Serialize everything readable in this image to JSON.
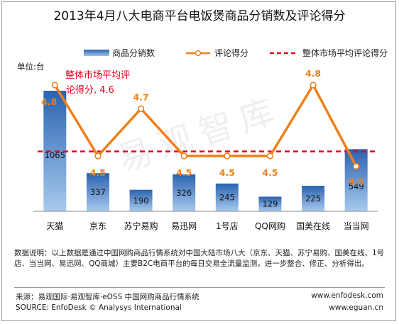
{
  "title": "2013年4月八大电商平台电饭煲商品分销数及评论得分",
  "unit_label": "单位:台",
  "legend": {
    "bars": "商品分销数",
    "line": "评论得分",
    "average": "整体市场平均评论得分"
  },
  "average_annotation_line1": "整体市场平均评",
  "average_annotation_line2": "论得分, 4.6",
  "watermark": "易观智库",
  "colors": {
    "bar_top": "#2a63b0",
    "bar_bottom": "#9fc3ea",
    "line": "#f07f1a",
    "average": "#e4001b",
    "score_label": "#ef7d17"
  },
  "chart_data": {
    "type": "bar",
    "categories": [
      "天猫",
      "京东",
      "苏宁易购",
      "易迅网",
      "1号店",
      "QQ网购",
      "国美在线",
      "当当网"
    ],
    "series": [
      {
        "name": "商品分销数",
        "type": "bar",
        "values": [
          1065,
          337,
          190,
          326,
          245,
          129,
          225,
          549
        ]
      },
      {
        "name": "评论得分",
        "type": "line",
        "values": [
          4.8,
          4.5,
          4.7,
          4.5,
          4.5,
          4.5,
          4.8,
          4.6
        ]
      },
      {
        "name": "整体市场平均评论得分",
        "type": "line",
        "values": [
          4.6,
          4.6,
          4.6,
          4.6,
          4.6,
          4.6,
          4.6,
          4.6
        ]
      }
    ],
    "bar_value_labels": [
      "1065",
      "337",
      "190",
      "326",
      "245",
      "129",
      "225",
      "549"
    ],
    "score_labels": [
      "4.8",
      "4.5",
      "4.7",
      "4.5",
      "4.5",
      "4.5",
      "4.8",
      "4.6"
    ],
    "ylabel": "单位:台",
    "bar_ylim": [
      0,
      1300
    ],
    "score_ylim": [
      4.0,
      5.0
    ],
    "legend_position": "top"
  },
  "note": "数据说明：以上数据是通过中国网购商品行情系统对中国大陆市场八大（京东、天猫、苏宁易购、国美在线、1号店、当当网、易迅网、QQ商城）主要B2C电商平台的每日交易全流量监测，进一步整合、修正、分析得出。",
  "footer": {
    "source_cn": "来源：易观国际·易观智库·eOSS 中国网购商品行情系统",
    "source_en": "SOURCE: EnfoDesk © Analysys International",
    "url1": "www.enfodesk.com",
    "url2": "www.eguan.cn"
  }
}
